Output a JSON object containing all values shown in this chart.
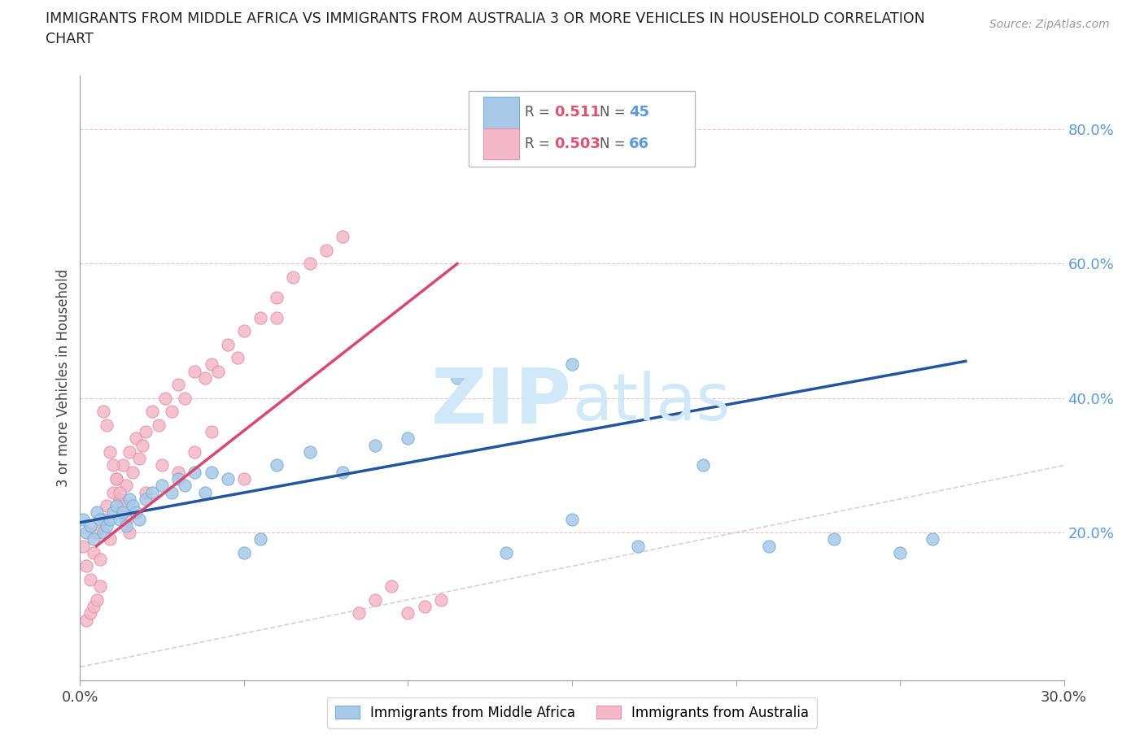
{
  "title_line1": "IMMIGRANTS FROM MIDDLE AFRICA VS IMMIGRANTS FROM AUSTRALIA 3 OR MORE VEHICLES IN HOUSEHOLD CORRELATION",
  "title_line2": "CHART",
  "source": "Source: ZipAtlas.com",
  "ylabel": "3 or more Vehicles in Household",
  "xlim": [
    0.0,
    0.3
  ],
  "ylim": [
    -0.02,
    0.88
  ],
  "yticks_right": [
    0.2,
    0.4,
    0.6,
    0.8
  ],
  "ytick_labels_right": [
    "20.0%",
    "40.0%",
    "60.0%",
    "80.0%"
  ],
  "legend_blue_label": "Immigrants from Middle Africa",
  "legend_pink_label": "Immigrants from Australia",
  "R_blue": "0.511",
  "N_blue": "45",
  "R_pink": "0.503",
  "N_pink": "66",
  "blue_color": "#a8c8e8",
  "pink_color": "#f4b8c8",
  "blue_edge_color": "#7aaed0",
  "pink_edge_color": "#e890a8",
  "blue_line_color": "#2155a0",
  "pink_line_color": "#d84870",
  "ref_line_color": "#c8c8c8",
  "background_color": "#ffffff",
  "watermark_color": "#d0e8f8",
  "blue_line_x": [
    0.0,
    0.27
  ],
  "blue_line_y": [
    0.215,
    0.455
  ],
  "pink_line_x": [
    0.005,
    0.115
  ],
  "pink_line_y": [
    0.18,
    0.6
  ],
  "ref_line_x": [
    0.0,
    0.85
  ],
  "ref_line_y": [
    0.0,
    0.85
  ],
  "blue_scatter_x": [
    0.001,
    0.002,
    0.003,
    0.004,
    0.005,
    0.006,
    0.007,
    0.008,
    0.009,
    0.01,
    0.011,
    0.012,
    0.013,
    0.014,
    0.015,
    0.016,
    0.017,
    0.018,
    0.02,
    0.022,
    0.025,
    0.028,
    0.03,
    0.032,
    0.035,
    0.038,
    0.04,
    0.045,
    0.05,
    0.055,
    0.06,
    0.07,
    0.08,
    0.09,
    0.1,
    0.115,
    0.13,
    0.15,
    0.17,
    0.19,
    0.21,
    0.23,
    0.25,
    0.15,
    0.26
  ],
  "blue_scatter_y": [
    0.22,
    0.2,
    0.21,
    0.19,
    0.23,
    0.22,
    0.2,
    0.21,
    0.22,
    0.23,
    0.24,
    0.22,
    0.23,
    0.21,
    0.25,
    0.24,
    0.23,
    0.22,
    0.25,
    0.26,
    0.27,
    0.26,
    0.28,
    0.27,
    0.29,
    0.26,
    0.29,
    0.28,
    0.17,
    0.19,
    0.3,
    0.32,
    0.29,
    0.33,
    0.34,
    0.43,
    0.17,
    0.22,
    0.18,
    0.3,
    0.18,
    0.19,
    0.17,
    0.45,
    0.19
  ],
  "pink_scatter_x": [
    0.001,
    0.002,
    0.003,
    0.004,
    0.005,
    0.006,
    0.007,
    0.008,
    0.009,
    0.01,
    0.011,
    0.012,
    0.013,
    0.014,
    0.015,
    0.016,
    0.017,
    0.018,
    0.019,
    0.02,
    0.022,
    0.024,
    0.026,
    0.028,
    0.03,
    0.032,
    0.035,
    0.038,
    0.04,
    0.042,
    0.045,
    0.048,
    0.05,
    0.055,
    0.06,
    0.065,
    0.07,
    0.075,
    0.08,
    0.085,
    0.09,
    0.095,
    0.1,
    0.105,
    0.11,
    0.002,
    0.003,
    0.004,
    0.005,
    0.006,
    0.007,
    0.008,
    0.009,
    0.01,
    0.011,
    0.012,
    0.013,
    0.014,
    0.015,
    0.02,
    0.025,
    0.03,
    0.035,
    0.04,
    0.05,
    0.06
  ],
  "pink_scatter_y": [
    0.18,
    0.15,
    0.13,
    0.17,
    0.2,
    0.16,
    0.22,
    0.24,
    0.19,
    0.26,
    0.28,
    0.25,
    0.3,
    0.27,
    0.32,
    0.29,
    0.34,
    0.31,
    0.33,
    0.35,
    0.38,
    0.36,
    0.4,
    0.38,
    0.42,
    0.4,
    0.44,
    0.43,
    0.45,
    0.44,
    0.48,
    0.46,
    0.5,
    0.52,
    0.55,
    0.58,
    0.6,
    0.62,
    0.64,
    0.08,
    0.1,
    0.12,
    0.08,
    0.09,
    0.1,
    0.07,
    0.08,
    0.09,
    0.1,
    0.12,
    0.38,
    0.36,
    0.32,
    0.3,
    0.28,
    0.26,
    0.24,
    0.22,
    0.2,
    0.26,
    0.3,
    0.29,
    0.32,
    0.35,
    0.28,
    0.52
  ]
}
